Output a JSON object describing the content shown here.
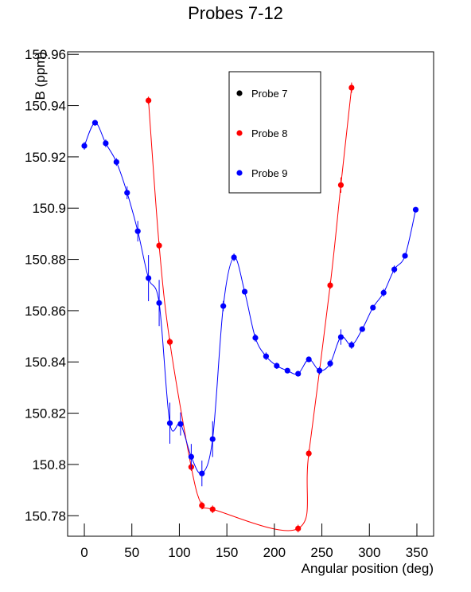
{
  "chart_data": {
    "type": "scatter",
    "title": "Probes 7-12",
    "x_label": "Angular position (deg)",
    "y_label": "B (ppm)",
    "xlim": [
      -17.6,
      367.6
    ],
    "xticks": [
      0,
      50,
      100,
      150,
      200,
      250,
      300,
      350
    ],
    "ylim": [
      150.772,
      150.961
    ],
    "yticks": [
      150.78,
      150.8,
      150.82,
      150.84,
      150.86,
      150.88,
      150.9,
      150.92,
      150.94,
      150.96
    ],
    "legend": "top-right",
    "series": [
      {
        "name": "Probe 7",
        "color": "#000000",
        "x": [],
        "values": [],
        "errors": []
      },
      {
        "name": "Probe 8",
        "color": "#ff0000",
        "x": [
          67.5,
          78.75,
          90,
          112.5,
          123.75,
          135,
          225,
          236.25,
          258.75,
          270,
          281.25
        ],
        "values": [
          150.942,
          150.8854,
          150.8478,
          150.799,
          150.784,
          150.7825,
          150.775,
          150.8043,
          150.8699,
          150.909,
          150.947
        ],
        "errors": [
          0.0015,
          0.0015,
          0.0015,
          0.0015,
          0.0015,
          0.0015,
          0.0015,
          0.0015,
          0.0015,
          0.003,
          0.002
        ]
      },
      {
        "name": "Probe 9",
        "color": "#0000ff",
        "x": [
          0,
          11.25,
          22.5,
          33.75,
          45,
          56.25,
          67.5,
          78.75,
          90,
          101.25,
          112.5,
          123.75,
          135,
          146.25,
          157.5,
          168.75,
          180,
          191.25,
          202.5,
          213.75,
          225,
          236.25,
          247.5,
          258.75,
          270,
          281.25,
          292.5,
          303.75,
          315,
          326.25,
          337.5,
          348.75
        ],
        "values": [
          150.9243,
          150.9333,
          150.9253,
          150.918,
          150.906,
          150.891,
          150.8727,
          150.863,
          150.8161,
          150.8158,
          150.803,
          150.7965,
          150.8099,
          150.8618,
          150.8808,
          150.8674,
          150.8494,
          150.8422,
          150.8385,
          150.8366,
          150.8354,
          150.841,
          150.8366,
          150.8394,
          150.8497,
          150.8466,
          150.8528,
          150.8612,
          150.867,
          150.8761,
          150.8814,
          150.8994
        ],
        "errors": [
          0.0015,
          0.001,
          0.0015,
          0.0015,
          0.0025,
          0.004,
          0.009,
          0.009,
          0.008,
          0.0045,
          0.005,
          0.005,
          0.007,
          0.002,
          0.0015,
          0.001,
          0.0015,
          0.0015,
          0.0012,
          0.001,
          0.001,
          0.001,
          0.0015,
          0.0015,
          0.003,
          0.0015,
          0.001,
          0.001,
          0.0015,
          0.0015,
          0.001,
          0.001
        ]
      }
    ]
  }
}
